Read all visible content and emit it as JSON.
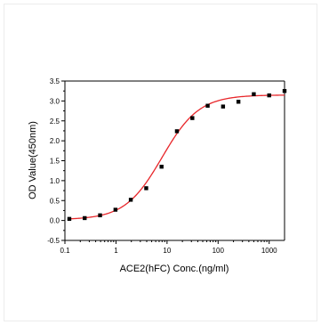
{
  "chart_data": {
    "type": "scatter",
    "title": "",
    "xlabel": "ACE2(hFC) Conc.(ng/ml)",
    "ylabel": "OD Value(450nm)",
    "x_scale": "log",
    "xlim": [
      0.1,
      2000
    ],
    "ylim": [
      -0.5,
      3.5
    ],
    "x_ticks": [
      0.1,
      1,
      10,
      100,
      1000
    ],
    "x_tick_labels": [
      "0.1",
      "1",
      "10",
      "100",
      "1000"
    ],
    "y_ticks": [
      -0.5,
      0.0,
      0.5,
      1.0,
      1.5,
      2.0,
      2.5,
      3.0,
      3.5
    ],
    "y_tick_labels": [
      "-0.5",
      "0.0",
      "0.5",
      "1.0",
      "1.5",
      "2.0",
      "2.5",
      "3.0",
      "3.5"
    ],
    "grid": false,
    "series": [
      {
        "kind": "points",
        "color": "#000000",
        "marker": "square",
        "x": [
          0.122,
          0.244,
          0.488,
          0.977,
          1.95,
          3.91,
          7.81,
          15.6,
          31.3,
          62.5,
          125,
          250,
          500,
          1000,
          2000
        ],
        "y": [
          0.04,
          0.06,
          0.13,
          0.27,
          0.52,
          0.81,
          1.35,
          2.24,
          2.57,
          2.88,
          2.86,
          2.98,
          3.17,
          3.14,
          3.25
        ]
      },
      {
        "kind": "fit-curve",
        "color": "#e8262a",
        "model": "4PL",
        "bottom": 0.02,
        "top": 3.15,
        "ec50": 8.0,
        "hill": 1.2
      }
    ]
  }
}
